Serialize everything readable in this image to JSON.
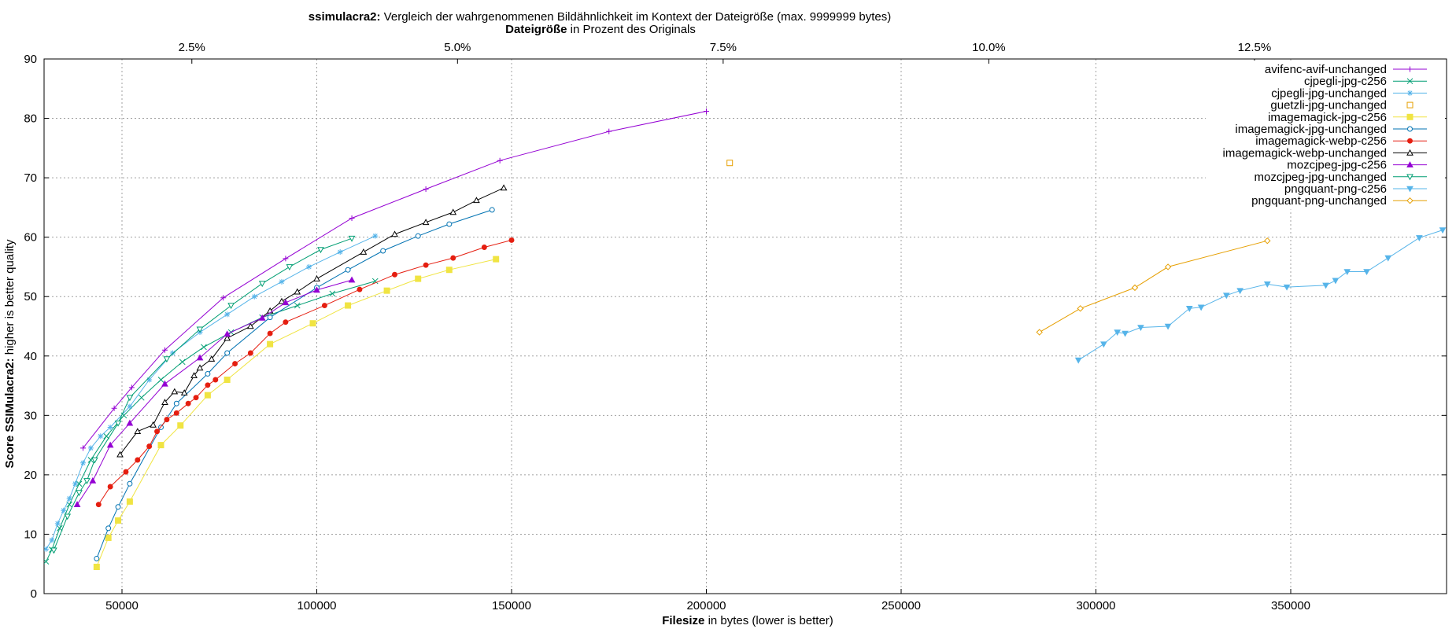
{
  "chart_data": {
    "type": "line",
    "title_bold": "ssimulacra2:",
    "title_rest": " Vergleich der wahrgenommenen Bildähnlichkeit im Kontext der Dateigröße (max. 9999999 bytes)",
    "x2label_bold": "Dateigröße",
    "x2label_rest": " in Prozent des Originals",
    "xlabel_bold": "Filesize",
    "xlabel_rest": " in bytes (lower is better)",
    "ylabel_bold": "Score SSIMulacra2:",
    "ylabel_rest": " higher is better quality",
    "xlim": [
      30000,
      390000
    ],
    "ylim": [
      0,
      90
    ],
    "xticks": [
      50000,
      100000,
      150000,
      200000,
      250000,
      300000,
      350000
    ],
    "xtick_labels": [
      "50000",
      "100000",
      "150000",
      "200000",
      "250000",
      "300000",
      "350000"
    ],
    "yticks": [
      0,
      10,
      20,
      30,
      40,
      50,
      60,
      70,
      80,
      90
    ],
    "ytick_labels": [
      "0",
      "10",
      "20",
      "30",
      "40",
      "50",
      "60",
      "70",
      "80",
      "90"
    ],
    "x2ticks_bytes": [
      67934,
      136124,
      204314,
      272504,
      340694
    ],
    "x2tick_labels": [
      "2.5%",
      "5.0%",
      "7.5%",
      "10.0%",
      "12.5%"
    ],
    "grid": true,
    "legend_position": "top-right",
    "series": [
      {
        "name": "avifenc-avif-unchanged",
        "color": "#9400d3",
        "marker": "plus",
        "line": true,
        "points": [
          [
            40000,
            24.5
          ],
          [
            48000,
            31.2
          ],
          [
            52500,
            34.7
          ],
          [
            61000,
            41.0
          ],
          [
            76000,
            49.8
          ],
          [
            92000,
            56.4
          ],
          [
            109000,
            63.2
          ],
          [
            128000,
            68.1
          ],
          [
            147000,
            72.9
          ],
          [
            175000,
            77.8
          ],
          [
            200000,
            81.2
          ]
        ]
      },
      {
        "name": "cjpegli-jpg-c256",
        "color": "#009e73",
        "marker": "x",
        "line": true,
        "points": [
          [
            30500,
            5.4
          ],
          [
            32000,
            7.4
          ],
          [
            34000,
            11.0
          ],
          [
            36500,
            15.0
          ],
          [
            39000,
            18.5
          ],
          [
            42000,
            22.5
          ],
          [
            46000,
            26.5
          ],
          [
            50500,
            30.0
          ],
          [
            55000,
            33.0
          ],
          [
            60000,
            36.0
          ],
          [
            65500,
            39.0
          ],
          [
            71000,
            41.5
          ],
          [
            78000,
            44.0
          ],
          [
            86000,
            46.5
          ],
          [
            95000,
            48.5
          ],
          [
            104000,
            50.5
          ],
          [
            115000,
            52.6
          ]
        ]
      },
      {
        "name": "cjpegli-jpg-unchanged",
        "color": "#56b4e9",
        "marker": "star",
        "line": true,
        "points": [
          [
            30500,
            7.5
          ],
          [
            32000,
            9.0
          ],
          [
            33500,
            11.8
          ],
          [
            35000,
            14.0
          ],
          [
            36500,
            16.0
          ],
          [
            38000,
            18.5
          ],
          [
            40000,
            22.0
          ],
          [
            42000,
            24.5
          ],
          [
            44500,
            26.5
          ],
          [
            47000,
            28.0
          ],
          [
            52000,
            31.5
          ],
          [
            57000,
            36.0
          ],
          [
            63000,
            40.5
          ],
          [
            70000,
            44.0
          ],
          [
            77000,
            47.0
          ],
          [
            84000,
            50.0
          ],
          [
            91000,
            52.5
          ],
          [
            98000,
            55.0
          ],
          [
            106000,
            57.5
          ],
          [
            115000,
            60.2
          ]
        ]
      },
      {
        "name": "guetzli-jpg-unchanged",
        "color": "#e69f00",
        "marker": "square",
        "line": false,
        "points": [
          [
            206000,
            72.5
          ]
        ]
      },
      {
        "name": "imagemagick-jpg-c256",
        "color": "#f0e442",
        "marker": "squarefill",
        "line": true,
        "points": [
          [
            43500,
            4.5
          ],
          [
            46500,
            9.4
          ],
          [
            49000,
            12.3
          ],
          [
            52000,
            15.5
          ],
          [
            60000,
            25.0
          ],
          [
            65000,
            28.3
          ],
          [
            72000,
            33.4
          ],
          [
            77000,
            36.0
          ],
          [
            88000,
            42.0
          ],
          [
            99000,
            45.5
          ],
          [
            108000,
            48.5
          ],
          [
            118000,
            51.0
          ],
          [
            126000,
            53.0
          ],
          [
            134000,
            54.5
          ],
          [
            146000,
            56.3
          ]
        ]
      },
      {
        "name": "imagemagick-jpg-unchanged",
        "color": "#0072b2",
        "marker": "circle",
        "line": true,
        "points": [
          [
            43500,
            5.9
          ],
          [
            46500,
            11.0
          ],
          [
            49000,
            14.6
          ],
          [
            52000,
            18.5
          ],
          [
            60000,
            28.0
          ],
          [
            64000,
            32.0
          ],
          [
            72000,
            37.0
          ],
          [
            77000,
            40.5
          ],
          [
            88000,
            46.5
          ],
          [
            100000,
            51.5
          ],
          [
            108000,
            54.5
          ],
          [
            117000,
            57.7
          ],
          [
            126000,
            60.2
          ],
          [
            134000,
            62.2
          ],
          [
            145000,
            64.6
          ]
        ]
      },
      {
        "name": "imagemagick-webp-c256",
        "color": "#e51e10",
        "marker": "circlefill",
        "line": true,
        "points": [
          [
            44000,
            15.0
          ],
          [
            47000,
            18.0
          ],
          [
            51000,
            20.5
          ],
          [
            54000,
            22.5
          ],
          [
            57000,
            24.8
          ],
          [
            59000,
            27.3
          ],
          [
            61500,
            29.3
          ],
          [
            64000,
            30.4
          ],
          [
            67000,
            32.0
          ],
          [
            69000,
            33.0
          ],
          [
            72000,
            35.1
          ],
          [
            74000,
            36.0
          ],
          [
            79000,
            38.7
          ],
          [
            83000,
            40.5
          ],
          [
            88000,
            43.8
          ],
          [
            92000,
            45.7
          ],
          [
            102000,
            48.5
          ],
          [
            111000,
            51.2
          ],
          [
            120000,
            53.7
          ],
          [
            128000,
            55.3
          ],
          [
            135000,
            56.5
          ],
          [
            143000,
            58.3
          ],
          [
            150000,
            59.5
          ]
        ]
      },
      {
        "name": "imagemagick-webp-unchanged",
        "color": "#000000",
        "marker": "triangle",
        "line": true,
        "points": [
          [
            49500,
            23.4
          ],
          [
            54000,
            27.3
          ],
          [
            58000,
            28.4
          ],
          [
            61000,
            32.2
          ],
          [
            63500,
            34.0
          ],
          [
            66000,
            33.8
          ],
          [
            68500,
            36.7
          ],
          [
            70000,
            38.0
          ],
          [
            73000,
            39.5
          ],
          [
            77000,
            43.0
          ],
          [
            83000,
            45.0
          ],
          [
            88000,
            47.6
          ],
          [
            91000,
            49.2
          ],
          [
            95000,
            50.8
          ],
          [
            100000,
            53.0
          ],
          [
            112000,
            57.5
          ],
          [
            120000,
            60.5
          ],
          [
            128000,
            62.5
          ],
          [
            135000,
            64.2
          ],
          [
            141000,
            66.2
          ],
          [
            148000,
            68.3
          ]
        ]
      },
      {
        "name": "mozcjpeg-jpg-c256",
        "color": "#9400d3",
        "marker": "trianglefill",
        "line": true,
        "points": [
          [
            38500,
            15.0
          ],
          [
            42500,
            19.0
          ],
          [
            47000,
            25.0
          ],
          [
            52000,
            28.7
          ],
          [
            61000,
            35.3
          ],
          [
            70000,
            39.7
          ],
          [
            77000,
            43.7
          ],
          [
            86000,
            46.4
          ],
          [
            92000,
            49.0
          ],
          [
            100000,
            51.1
          ],
          [
            109000,
            52.8
          ]
        ]
      },
      {
        "name": "mozcjpeg-jpg-unchanged",
        "color": "#009e73",
        "marker": "triangledown",
        "line": true,
        "points": [
          [
            32500,
            7.3
          ],
          [
            36000,
            13.0
          ],
          [
            39000,
            17.0
          ],
          [
            41000,
            19.0
          ],
          [
            43000,
            22.5
          ],
          [
            49000,
            28.7
          ],
          [
            52000,
            33.0
          ],
          [
            61500,
            39.5
          ],
          [
            70000,
            44.5
          ],
          [
            78000,
            48.5
          ],
          [
            86000,
            52.2
          ],
          [
            93000,
            55.0
          ],
          [
            101000,
            57.9
          ],
          [
            109000,
            59.8
          ]
        ]
      },
      {
        "name": "pngquant-png-c256",
        "color": "#56b4e9",
        "marker": "triangledownfill",
        "line": true,
        "points": [
          [
            295500,
            39.3
          ],
          [
            302000,
            42.0
          ],
          [
            305500,
            44.0
          ],
          [
            307500,
            43.8
          ],
          [
            311500,
            44.8
          ],
          [
            318500,
            45.0
          ],
          [
            324000,
            48.0
          ],
          [
            327000,
            48.2
          ],
          [
            333500,
            50.2
          ],
          [
            337000,
            51.0
          ],
          [
            344000,
            52.1
          ],
          [
            349000,
            51.6
          ],
          [
            359000,
            51.9
          ],
          [
            361500,
            52.7
          ],
          [
            364500,
            54.2
          ],
          [
            369500,
            54.2
          ],
          [
            375000,
            56.5
          ],
          [
            383000,
            59.9
          ],
          [
            389000,
            61.2
          ]
        ]
      },
      {
        "name": "pngquant-png-unchanged",
        "color": "#e69f00",
        "marker": "diamond",
        "line": true,
        "points": [
          [
            285500,
            44.0
          ],
          [
            296000,
            48.0
          ],
          [
            310000,
            51.5
          ],
          [
            318500,
            55.0
          ],
          [
            344000,
            59.4
          ]
        ]
      }
    ]
  }
}
